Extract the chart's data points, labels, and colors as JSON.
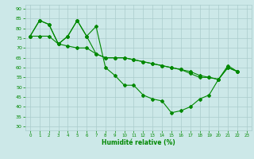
{
  "xlabel": "Humidité relative (%)",
  "xlim": [
    -0.5,
    23.5
  ],
  "ylim": [
    28,
    92
  ],
  "yticks": [
    30,
    35,
    40,
    45,
    50,
    55,
    60,
    65,
    70,
    75,
    80,
    85,
    90
  ],
  "xticks": [
    0,
    1,
    2,
    3,
    4,
    5,
    6,
    7,
    8,
    9,
    10,
    11,
    12,
    13,
    14,
    15,
    16,
    17,
    18,
    19,
    20,
    21,
    22,
    23
  ],
  "background_color": "#cce8e8",
  "grid_color": "#aacccc",
  "line_color": "#008800",
  "line1_x": [
    0,
    1,
    2,
    3,
    4,
    5,
    6,
    7,
    8,
    9,
    10,
    11,
    12,
    13,
    14,
    15,
    16,
    17,
    18,
    19,
    20,
    21,
    22
  ],
  "line1_y": [
    76,
    84,
    82,
    72,
    76,
    84,
    76,
    81,
    60,
    56,
    51,
    51,
    46,
    44,
    43,
    37,
    38,
    40,
    44,
    46,
    54,
    61,
    58
  ],
  "line2_x": [
    0,
    1,
    2,
    3,
    4,
    5,
    6,
    7,
    8,
    9,
    10,
    11,
    12,
    13,
    14,
    15,
    16,
    17,
    18,
    19,
    20,
    21,
    22
  ],
  "line2_y": [
    76,
    76,
    76,
    72,
    71,
    70,
    70,
    67,
    65,
    65,
    65,
    64,
    63,
    62,
    61,
    60,
    59,
    58,
    56,
    55,
    54,
    60,
    58
  ],
  "line3_x": [
    0,
    1,
    2,
    3,
    4,
    5,
    6,
    7,
    8,
    9,
    10,
    11,
    12,
    13,
    14,
    15,
    16,
    17,
    18,
    19,
    20,
    21,
    22
  ],
  "line3_y": [
    76,
    84,
    82,
    72,
    76,
    84,
    76,
    67,
    65,
    65,
    65,
    64,
    63,
    62,
    61,
    60,
    59,
    57,
    55,
    55,
    54,
    60,
    58
  ],
  "figsize": [
    3.2,
    2.0
  ],
  "dpi": 100
}
